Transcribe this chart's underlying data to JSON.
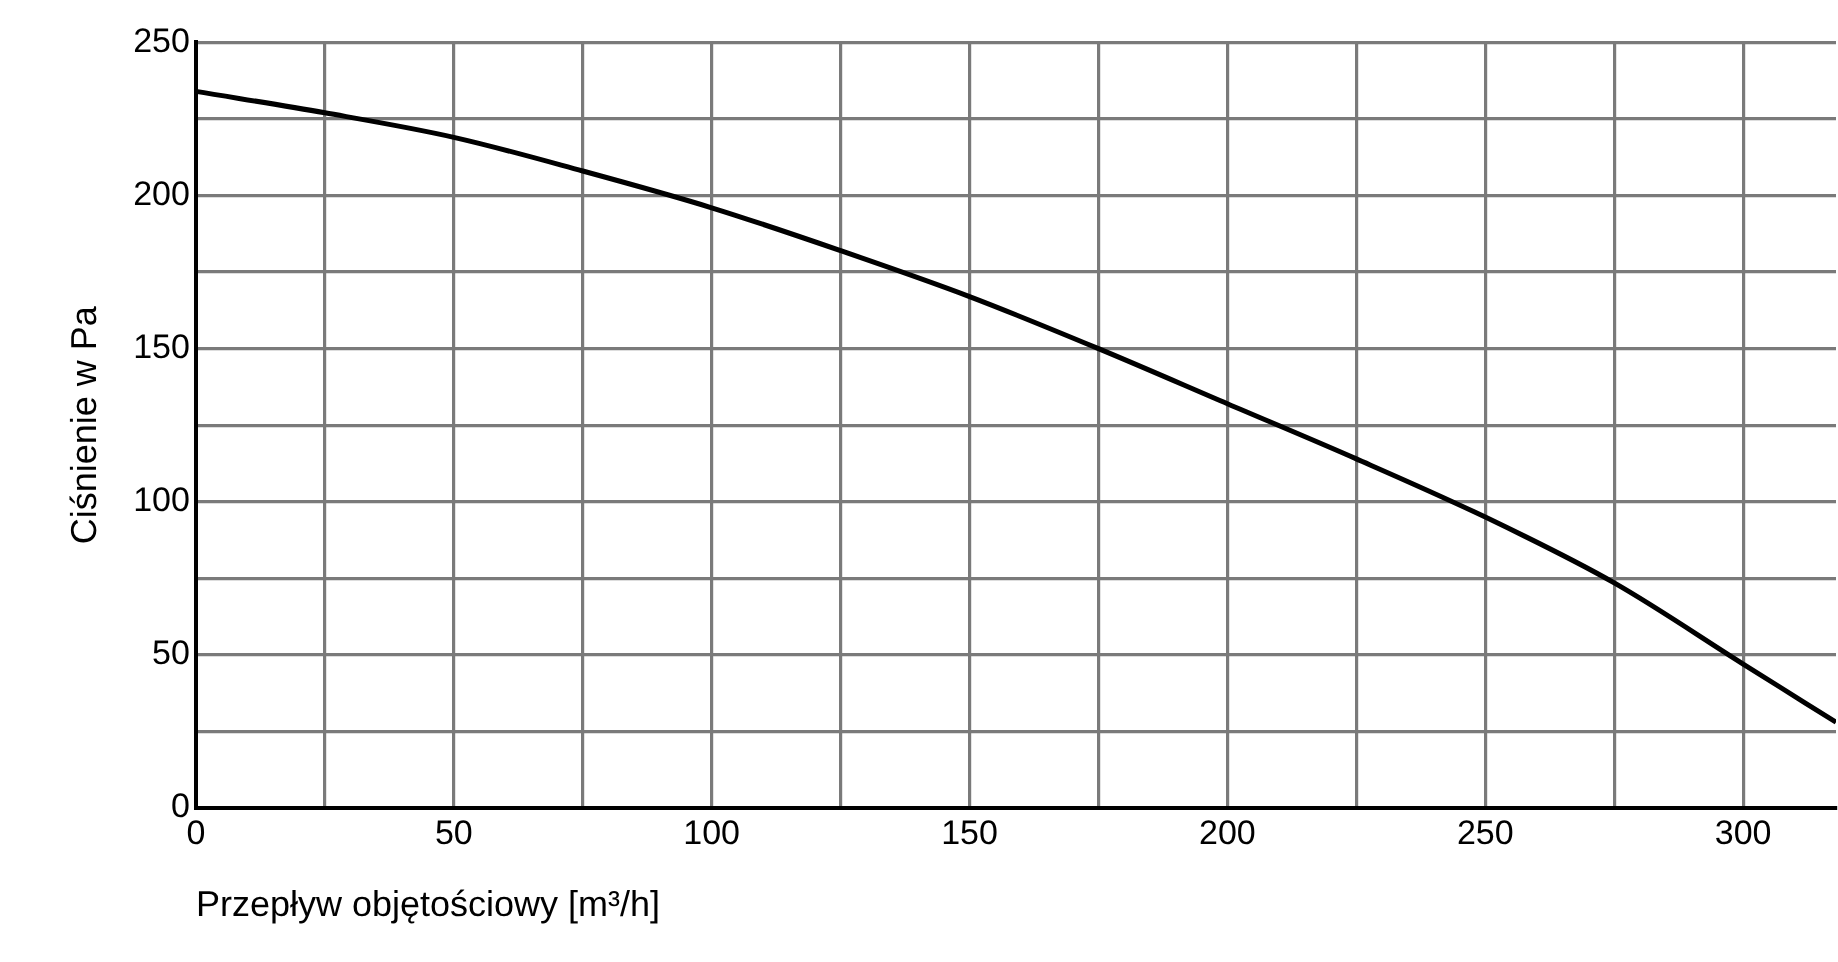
{
  "chart_data": {
    "type": "line",
    "xlabel": "Przepływ objętościowy [m³/h]",
    "ylabel": "Ciśnienie w Pa",
    "x": [
      0,
      25,
      50,
      75,
      100,
      125,
      150,
      175,
      200,
      225,
      250,
      275,
      300,
      318
    ],
    "series": [
      {
        "color": "#000000",
        "values": [
          234,
          227,
          219,
          208,
          196,
          182,
          167,
          150,
          132,
          114,
          95,
          73.5,
          47,
          28
        ]
      }
    ],
    "xlim": [
      0,
      318
    ],
    "ylim": [
      0,
      250
    ],
    "xticks": [
      0,
      {
        "value": 25,
        "label": null
      },
      50,
      {
        "value": 75,
        "label": null
      },
      100,
      {
        "value": 125,
        "label": null
      },
      150,
      {
        "value": 175,
        "label": null
      },
      200,
      {
        "value": 225,
        "label": null
      },
      250,
      {
        "value": 275,
        "label": null
      },
      300
    ],
    "yticks": [
      0,
      {
        "value": 25,
        "label": null
      },
      50,
      {
        "value": 75,
        "label": null
      },
      100,
      {
        "value": 125,
        "label": null
      },
      150,
      {
        "value": 175,
        "label": null
      },
      200,
      {
        "value": 225,
        "label": null
      },
      250
    ],
    "grid": true,
    "legend": false,
    "marker": "none",
    "line_style": "solid"
  }
}
